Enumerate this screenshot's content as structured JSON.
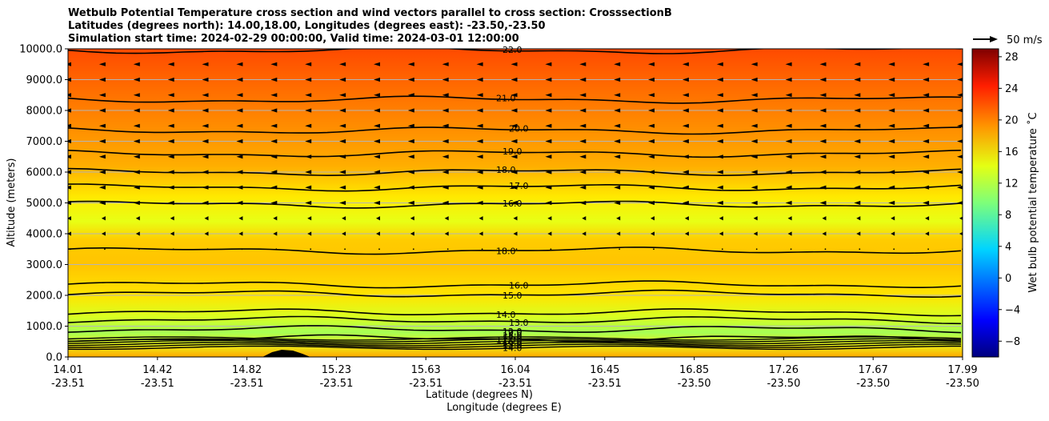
{
  "chart_data": {
    "type": "filled-contour",
    "title": [
      "Wetbulb Potential Temperature cross section and wind vectors parallel to cross section: CrosssectionB",
      "Latitudes (degrees north): 14.00,18.00, Longitudes (degrees east): -23.50,-23.50",
      "Simulation start time: 2024-02-29 00:00:00, Valid time: 2024-03-01 12:00:00"
    ],
    "xlabel_line1": "Latitude (degrees N)",
    "xlabel_line2": "Longitude (degrees E)",
    "ylabel": "Altitude (meters)",
    "ylim": [
      0,
      10000
    ],
    "grid": "horizontal",
    "x_ticks": [
      {
        "lat": "14.01",
        "lon": "-23.51"
      },
      {
        "lat": "14.42",
        "lon": "-23.51"
      },
      {
        "lat": "14.82",
        "lon": "-23.51"
      },
      {
        "lat": "15.23",
        "lon": "-23.51"
      },
      {
        "lat": "15.63",
        "lon": "-23.51"
      },
      {
        "lat": "16.04",
        "lon": "-23.51"
      },
      {
        "lat": "16.45",
        "lon": "-23.51"
      },
      {
        "lat": "16.85",
        "lon": "-23.50"
      },
      {
        "lat": "17.26",
        "lon": "-23.50"
      },
      {
        "lat": "17.67",
        "lon": "-23.50"
      },
      {
        "lat": "17.99",
        "lon": "-23.50"
      }
    ],
    "y_ticks": [
      "0.0",
      "1000.0",
      "2000.0",
      "3000.0",
      "4000.0",
      "5000.0",
      "6000.0",
      "7000.0",
      "8000.0",
      "9000.0",
      "10000.0"
    ],
    "y_tick_values": [
      0,
      1000,
      2000,
      3000,
      4000,
      5000,
      6000,
      7000,
      8000,
      9000,
      10000
    ],
    "colorbar": {
      "label": "Wet bulb potential temperature ˚C",
      "range": [
        -10,
        29
      ],
      "ticks": [
        "−8",
        "−4",
        "0",
        "4",
        "8",
        "12",
        "16",
        "20",
        "24",
        "28"
      ],
      "tick_values": [
        -8,
        -4,
        0,
        4,
        8,
        12,
        16,
        20,
        24,
        28
      ],
      "colormap": "jet"
    },
    "quiver_key": "50 m/s",
    "contour_levels": [
      {
        "level": "11.0",
        "altitude": 600
      },
      {
        "level": "12.0",
        "altitude": 900
      },
      {
        "level": "13.0",
        "altitude": 1200
      },
      {
        "level": "14.0",
        "altitude": 1450
      },
      {
        "level": "15.0",
        "altitude": 2050
      },
      {
        "level": "16.0",
        "altitude": 2350
      },
      {
        "level": "18.0",
        "altitude": 3450
      },
      {
        "level": "16.0",
        "altitude": 4950
      },
      {
        "level": "17.0",
        "altitude": 5500
      },
      {
        "level": "18.0",
        "altitude": 6000
      },
      {
        "level": "19.0",
        "altitude": 6600
      },
      {
        "level": "20.0",
        "altitude": 7350
      },
      {
        "level": "21.0",
        "altitude": 8350
      },
      {
        "level": "22.0",
        "altitude": 9950
      }
    ],
    "surface_levels": [
      "14.0",
      "15.0",
      "16.0",
      "17.0",
      "18.0",
      "19.0"
    ],
    "wind_rows_altitude": [
      9500,
      9000,
      8500,
      8000,
      7500,
      7000,
      6500,
      6000,
      5500,
      5000,
      4500,
      4000,
      3500
    ]
  }
}
